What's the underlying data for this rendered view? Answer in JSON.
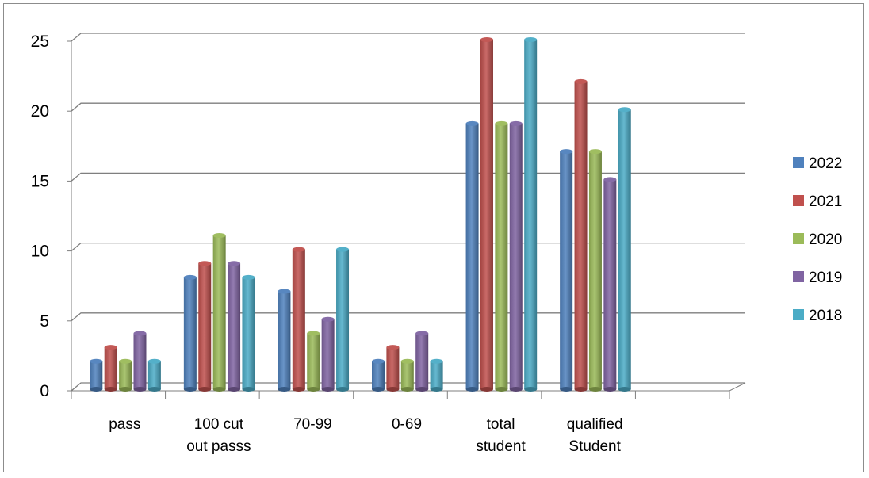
{
  "chart_data": {
    "type": "bar",
    "style": "3d-clustered-column",
    "categories": [
      [
        "pass"
      ],
      [
        "100  cut",
        "out passs"
      ],
      [
        "70-99"
      ],
      [
        "0-69"
      ],
      [
        "total",
        "student"
      ],
      [
        "qualified",
        "Student"
      ],
      [
        ""
      ]
    ],
    "series": [
      {
        "name": "2022",
        "color": "#4f81bd",
        "values": [
          2,
          8,
          7,
          2,
          19,
          17,
          null
        ]
      },
      {
        "name": "2021",
        "color": "#c0504d",
        "values": [
          3,
          9,
          10,
          3,
          25,
          22,
          null
        ]
      },
      {
        "name": "2020",
        "color": "#9bbb59",
        "values": [
          2,
          11,
          4,
          2,
          19,
          17,
          null
        ]
      },
      {
        "name": "2019",
        "color": "#8064a2",
        "values": [
          4,
          9,
          5,
          4,
          19,
          15,
          null
        ]
      },
      {
        "name": "2018",
        "color": "#4bacc6",
        "values": [
          2,
          8,
          10,
          2,
          25,
          20,
          null
        ]
      }
    ],
    "yticks": [
      "0",
      "5",
      "10",
      "15",
      "20",
      "25"
    ],
    "ylim": [
      0,
      25
    ],
    "grid": true,
    "legend": "right",
    "title": "",
    "xlabel": "",
    "ylabel": ""
  }
}
